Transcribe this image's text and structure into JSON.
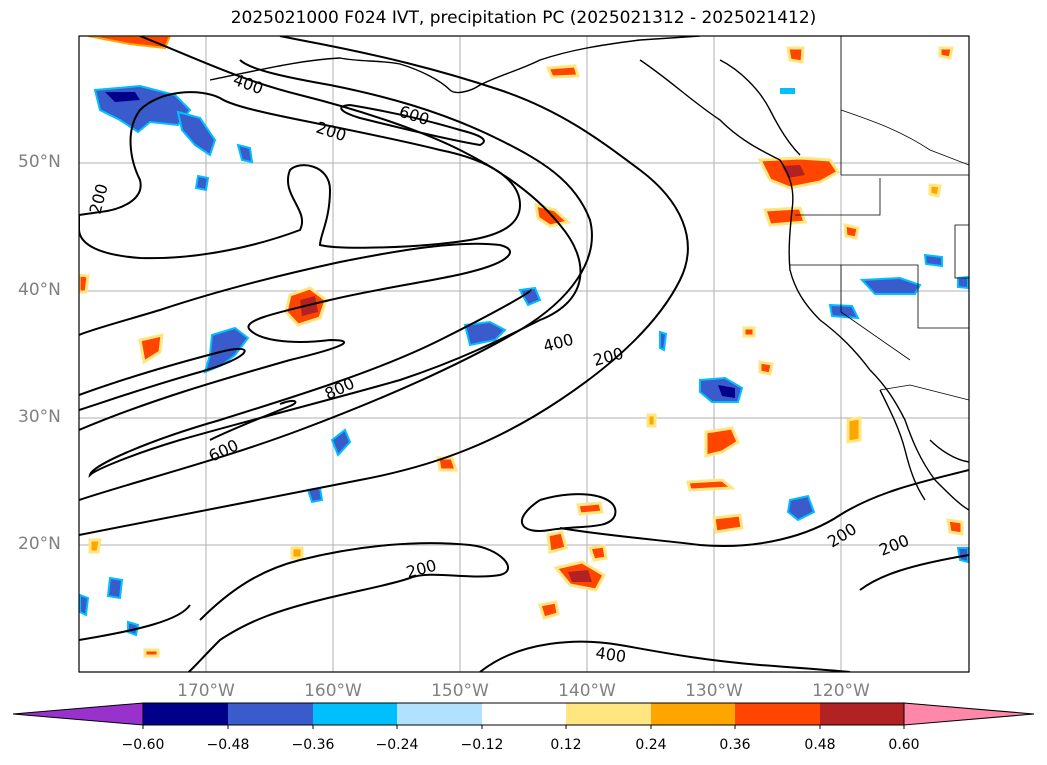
{
  "title": "2025021000 F024 IVT, precipitation PC (2025021312 - 2025021412)",
  "map": {
    "lat_labels": [
      "50°N",
      "40°N",
      "30°N",
      "20°N"
    ],
    "lon_labels": [
      "170°W",
      "160°W",
      "150°W",
      "140°W",
      "130°W",
      "120°W"
    ],
    "contour_labels": [
      "400",
      "600",
      "200",
      "200",
      "600",
      "800",
      "400",
      "200",
      "200",
      "200",
      "200",
      "400"
    ],
    "gridline_color": "#b0b0b0"
  },
  "colorbar": {
    "colors": [
      "#9932cc",
      "#00008b",
      "#3a5bcc",
      "#00bfff",
      "#b0e2ff",
      "#ffffff",
      "#ffe680",
      "#ffa500",
      "#ff4500",
      "#b22222",
      "#ff88aa"
    ],
    "tick_labels": [
      "−0.60",
      "−0.48",
      "−0.36",
      "−0.24",
      "−0.12",
      "0.12",
      "0.24",
      "0.36",
      "0.48",
      "0.60"
    ]
  }
}
